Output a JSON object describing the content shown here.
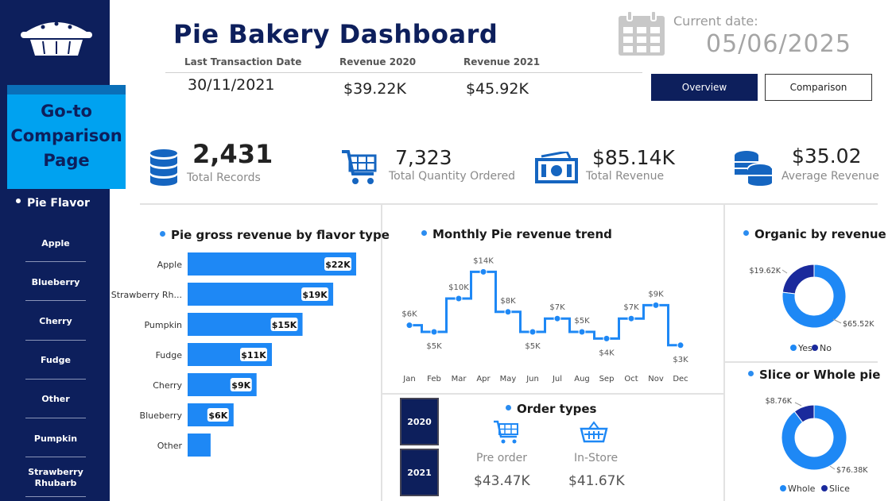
{
  "header": {
    "title": "Pie Bakery Dashboard",
    "last_tx_label": "Last Transaction Date",
    "last_tx_value": "30/11/2021",
    "rev2020_label": "Revenue 2020",
    "rev2020_value": "$39.22K",
    "rev2021_label": "Revenue 2021",
    "rev2021_value": "$45.92K",
    "current_date_label": "Current date:",
    "current_date_value": "05/06/2025",
    "overview_label": "Overview",
    "comparison_label": "Comparison"
  },
  "sidebar": {
    "goto_line1": "Go-to",
    "goto_line2": "Comparison",
    "goto_line3": "Page",
    "slicer_title": "Pie Flavor",
    "flavors": [
      "Apple",
      "Blueberry",
      "Cherry",
      "Fudge",
      "Other",
      "Pumpkin",
      "Strawberry",
      "Rhubarb"
    ]
  },
  "kpis": [
    {
      "value": "2,431",
      "label": "Total Records"
    },
    {
      "value": "7,323",
      "label": "Total Quantity Ordered"
    },
    {
      "value": "$85.14K",
      "label": "Total Revenue"
    },
    {
      "value": "$35.02",
      "label": "Average Revenue"
    }
  ],
  "colors": {
    "navy": "#0d1f5c",
    "accent": "#1e88f5",
    "dark_blue": "#1a2a9c",
    "cyan": "#00a2f0"
  },
  "chart_data": [
    {
      "type": "bar",
      "title": "Pie gross revenue by flavor type",
      "orientation": "horizontal",
      "categories": [
        "Apple",
        "Strawberry Rh...",
        "Pumpkin",
        "Fudge",
        "Cherry",
        "Blueberry",
        "Other"
      ],
      "values": [
        22,
        19,
        15,
        11,
        9,
        6,
        3
      ],
      "data_labels": [
        "$22K",
        "$19K",
        "$15K",
        "$11K",
        "$9K",
        "$6K",
        ""
      ],
      "units": "$K"
    },
    {
      "type": "line",
      "title": "Monthly Pie revenue trend",
      "step": true,
      "categories": [
        "Jan",
        "Feb",
        "Mar",
        "Apr",
        "May",
        "Jun",
        "Jul",
        "Aug",
        "Sep",
        "Oct",
        "Nov",
        "Dec"
      ],
      "values": [
        6,
        5,
        10,
        14,
        8,
        5,
        7,
        5,
        4,
        7,
        9,
        3
      ],
      "data_labels": [
        "$6K",
        "$5K",
        "$10K",
        "$14K",
        "$8K",
        "$5K",
        "$7K",
        "$5K",
        "$4K",
        "$7K",
        "$9K",
        "$3K"
      ],
      "units": "$K"
    },
    {
      "type": "pie",
      "donut": true,
      "title": "Organic by revenue",
      "categories": [
        "Yes",
        "No"
      ],
      "values": [
        65.52,
        19.62
      ],
      "data_labels": [
        "$65.52K",
        "$19.62K"
      ],
      "legend": "bottom"
    },
    {
      "type": "pie",
      "donut": true,
      "title": "Slice or Whole pie",
      "categories": [
        "Whole",
        "Slice"
      ],
      "values": [
        76.38,
        8.76
      ],
      "data_labels": [
        "$76.38K",
        "$8.76K"
      ],
      "legend": "bottom"
    }
  ],
  "order_types": {
    "title": "Order types",
    "years": [
      "2020",
      "2021"
    ],
    "preorder_label": "Pre order",
    "preorder_value": "$43.47K",
    "instore_label": "In-Store",
    "instore_value": "$41.67K"
  }
}
